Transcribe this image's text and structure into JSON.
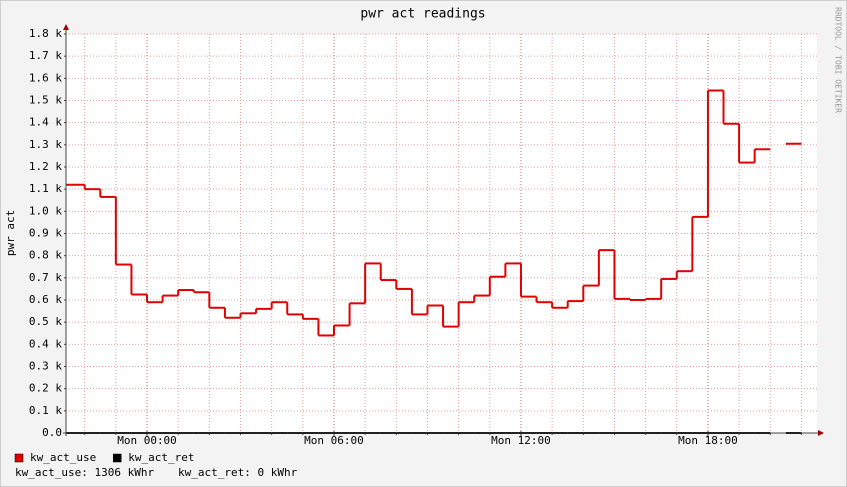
{
  "chart_data": {
    "type": "step",
    "title": "pwr act readings",
    "y_label": "pwr act",
    "watermark": "RRDTOOL / TOBI OETIKER",
    "footer": [
      "kw_act_use: 1306 kWhr",
      "kw_act_ret: 0 kWhr"
    ],
    "x": [
      -2,
      -1.5,
      -1,
      -0.5,
      0,
      0.5,
      1,
      1.5,
      2,
      2.5,
      3,
      3.5,
      4,
      4.5,
      5,
      5.5,
      6,
      6.5,
      7,
      7.5,
      8,
      8.5,
      9,
      9.5,
      10,
      10.5,
      11,
      11.5,
      12,
      12.5,
      13,
      13.5,
      14,
      14.5,
      15,
      15.5,
      16,
      16.5,
      17,
      17.5,
      18,
      18.5,
      19,
      19.5,
      20,
      20.5,
      21
    ],
    "series": [
      {
        "name": "kw_act_use",
        "color": "#e00000",
        "values": [
          1120,
          1100,
          1065,
          760,
          625,
          590,
          620,
          645,
          635,
          565,
          520,
          540,
          560,
          590,
          535,
          515,
          440,
          485,
          585,
          765,
          690,
          650,
          535,
          575,
          480,
          590,
          620,
          705,
          765,
          615,
          590,
          565,
          595,
          665,
          825,
          605,
          600,
          605,
          695,
          730,
          975,
          1545,
          1395,
          1220,
          1280,
          null,
          1305
        ]
      },
      {
        "name": "kw_act_ret",
        "color": "#000000",
        "values": [
          0,
          0,
          0,
          0,
          0,
          0,
          0,
          0,
          0,
          0,
          0,
          0,
          0,
          0,
          0,
          0,
          0,
          0,
          0,
          0,
          0,
          0,
          0,
          0,
          0,
          0,
          0,
          0,
          0,
          0,
          0,
          0,
          0,
          0,
          0,
          0,
          0,
          0,
          0,
          0,
          0,
          0,
          0,
          0,
          0,
          null,
          0
        ]
      }
    ],
    "xlim": [
      -2.6,
      21.5
    ],
    "xticks": [
      {
        "value": 0,
        "label": "Mon 00:00"
      },
      {
        "value": 6,
        "label": "Mon 06:00"
      },
      {
        "value": 12,
        "label": "Mon 12:00"
      },
      {
        "value": 18,
        "label": "Mon 18:00"
      }
    ],
    "xminorticks": [
      -2,
      -1,
      0,
      1,
      2,
      3,
      4,
      5,
      6,
      7,
      8,
      9,
      10,
      11,
      12,
      13,
      14,
      15,
      16,
      17,
      18,
      19,
      20,
      21
    ],
    "ylim": [
      0,
      1800
    ],
    "yticks": [
      {
        "value": 0,
        "label": "0.0"
      },
      {
        "value": 100,
        "label": "0.1 k"
      },
      {
        "value": 200,
        "label": "0.2 k"
      },
      {
        "value": 300,
        "label": "0.3 k"
      },
      {
        "value": 400,
        "label": "0.4 k"
      },
      {
        "value": 500,
        "label": "0.5 k"
      },
      {
        "value": 600,
        "label": "0.6 k"
      },
      {
        "value": 700,
        "label": "0.7 k"
      },
      {
        "value": 800,
        "label": "0.8 k"
      },
      {
        "value": 900,
        "label": "0.9 k"
      },
      {
        "value": 1000,
        "label": "1.0 k"
      },
      {
        "value": 1100,
        "label": "1.1 k"
      },
      {
        "value": 1200,
        "label": "1.2 k"
      },
      {
        "value": 1300,
        "label": "1.3 k"
      },
      {
        "value": 1400,
        "label": "1.4 k"
      },
      {
        "value": 1500,
        "label": "1.5 k"
      },
      {
        "value": 1600,
        "label": "1.6 k"
      },
      {
        "value": 1700,
        "label": "1.7 k"
      },
      {
        "value": 1800,
        "label": "1.8 k"
      }
    ],
    "grid": true
  }
}
